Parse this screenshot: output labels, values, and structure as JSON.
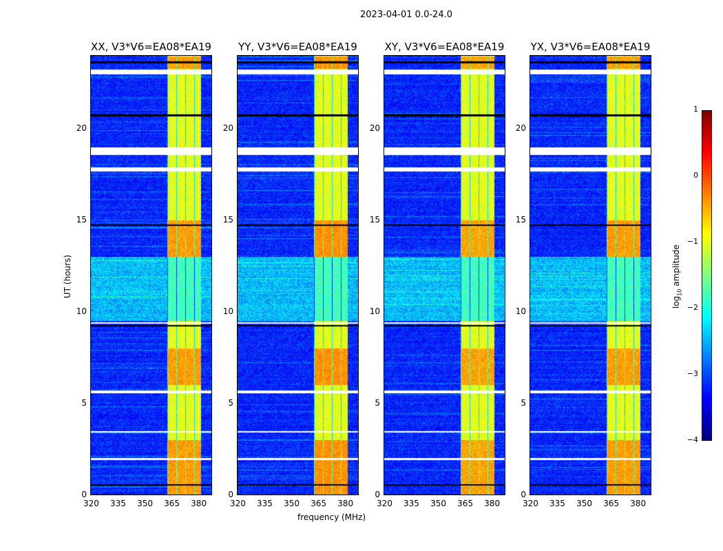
{
  "figure": {
    "suptitle": "2023-04-01 0.0-24.0"
  },
  "chart_data": {
    "type": "heatmap",
    "panels": [
      {
        "title": "XX, V3*V6=EA08*EA19",
        "band_strength": 1.0
      },
      {
        "title": "YY, V3*V6=EA08*EA19",
        "band_strength": 1.1
      },
      {
        "title": "XY, V3*V6=EA08*EA19",
        "band_strength": 0.95
      },
      {
        "title": "YX, V3*V6=EA08*EA19",
        "band_strength": 1.0
      }
    ],
    "xlabel": "frequency (MHz)",
    "ylabel": "UT (hours)",
    "xlim": [
      320,
      388
    ],
    "ylim": [
      0,
      24
    ],
    "xticks": [
      "320",
      "335",
      "350",
      "365",
      "380"
    ],
    "xtick_values": [
      320,
      335,
      350,
      365,
      380
    ],
    "yticks": [
      "0",
      "5",
      "10",
      "15",
      "20"
    ],
    "ytick_values": [
      0,
      5,
      10,
      15,
      20
    ],
    "colorbar": {
      "label": "log10 amplitude",
      "label_main": "log",
      "label_sub": "10",
      "label_rest": " amplitude",
      "ticks": [
        "1",
        "0",
        "−1",
        "−2",
        "−3",
        "−4"
      ],
      "tick_values": [
        1,
        0,
        -1,
        -2,
        -3,
        -4
      ],
      "range": [
        -4,
        1
      ],
      "colormap": "jet"
    },
    "background_level": -3.2,
    "high_band_mhz": [
      363,
      382
    ],
    "high_band_level": -1.0,
    "bright_intervals_hours": [
      [
        0,
        3
      ],
      [
        6,
        8
      ],
      [
        13,
        15
      ],
      [
        23.3,
        24
      ]
    ],
    "noisy_interval_hours": [
      9.5,
      13
    ],
    "flagged_white_hours": [
      [
        18.6,
        19
      ],
      [
        17.7,
        17.9
      ],
      [
        23,
        23.25
      ],
      [
        5.55,
        5.7
      ],
      [
        9.35,
        9.45
      ],
      [
        3.4,
        3.5
      ],
      [
        1.9,
        2.0
      ]
    ],
    "flagged_black_hours": [
      [
        20.7,
        20.8
      ],
      [
        0.5,
        0.6
      ],
      [
        9.2,
        9.3
      ],
      [
        14.7,
        14.8
      ],
      [
        23.6,
        23.7
      ]
    ]
  }
}
